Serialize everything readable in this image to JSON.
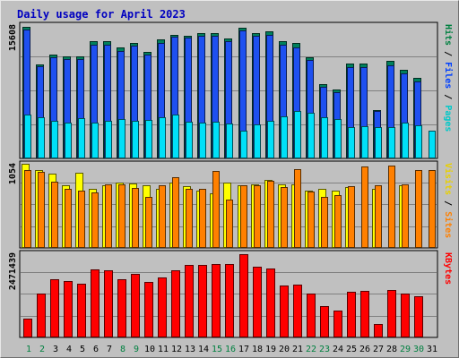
{
  "chart_data": {
    "type": "bar",
    "title": "Daily usage for April 2023",
    "categories": [
      "1",
      "2",
      "3",
      "4",
      "5",
      "6",
      "7",
      "8",
      "9",
      "10",
      "11",
      "12",
      "13",
      "14",
      "15",
      "16",
      "17",
      "18",
      "19",
      "20",
      "21",
      "22",
      "23",
      "24",
      "25",
      "26",
      "27",
      "28",
      "29",
      "30",
      "31"
    ],
    "weekend_days": [
      "1",
      "2",
      "8",
      "9",
      "15",
      "16",
      "22",
      "23",
      "29",
      "30"
    ],
    "panels": [
      {
        "id": "hits",
        "max_label": "15608",
        "ylim": [
          0,
          15608
        ],
        "label_parts": [
          {
            "text": "Pages",
            "color": "#00c8c8"
          },
          {
            "text": " / ",
            "color": "#000000"
          },
          {
            "text": "Files",
            "color": "#0040ff"
          },
          {
            "text": " / ",
            "color": "#000000"
          },
          {
            "text": "Hits",
            "color": "#008040"
          }
        ],
        "series": [
          {
            "name": "Hits",
            "color": "#00805c",
            "values": [
              15400,
              11000,
              12100,
              11900,
              11900,
              13700,
              13700,
              13000,
              13500,
              12500,
              13900,
              14500,
              14400,
              14700,
              14700,
              14000,
              15300,
              14700,
              14900,
              13700,
              13500,
              11800,
              8700,
              8100,
              11100,
              11100,
              5700,
              11400,
              10400,
              9400,
              null
            ]
          },
          {
            "name": "Files",
            "color": "#1e50f0",
            "values": [
              15100,
              10800,
              11800,
              11600,
              11600,
              13300,
              13300,
              12600,
              13200,
              12200,
              13500,
              14200,
              14100,
              14400,
              14400,
              13700,
              15000,
              14400,
              14500,
              13300,
              13000,
              11500,
              8400,
              7800,
              10700,
              10700,
              5500,
              10900,
              9900,
              9000,
              null
            ]
          },
          {
            "name": "Pages",
            "color": "#00e0f8",
            "values": [
              5100,
              4800,
              4400,
              4200,
              4700,
              4200,
              4400,
              4600,
              4400,
              4500,
              4800,
              5100,
              4300,
              4200,
              4300,
              4100,
              3200,
              4000,
              4400,
              4900,
              5600,
              5300,
              4800,
              4600,
              3700,
              3800,
              3700,
              3700,
              4200,
              3900,
              3200
            ]
          }
        ]
      },
      {
        "id": "visits",
        "max_label": "1054",
        "ylim": [
          0,
          1054
        ],
        "label_parts": [
          {
            "text": "Sites",
            "color": "#ff8000"
          },
          {
            "text": " / ",
            "color": "#000000"
          },
          {
            "text": "Visits",
            "color": "#e8d000"
          }
        ],
        "series": [
          {
            "name": "Visits",
            "color": "#ffff00",
            "values": [
              1054,
              980,
              930,
              780,
              940,
              740,
              790,
              820,
              810,
              790,
              740,
              820,
              770,
              720,
              680,
              820,
              780,
              800,
              850,
              800,
              800,
              720,
              740,
              720,
              760,
              null,
              740,
              null,
              780,
              null,
              null
            ]
          },
          {
            "name": "Sites",
            "color": "#ff8000",
            "values": [
              980,
              950,
              830,
              740,
              720,
              690,
              800,
              800,
              750,
              640,
              780,
              890,
              740,
              740,
              960,
              600,
              790,
              780,
              840,
              760,
              990,
              710,
              640,
              660,
              770,
              1020,
              780,
              1030,
              800,
              980,
              980
            ]
          }
        ]
      },
      {
        "id": "kbytes",
        "max_label": "2471439",
        "ylim": [
          0,
          2471439
        ],
        "label_parts": [
          {
            "text": "KBytes",
            "color": "#ff0000"
          }
        ],
        "series": [
          {
            "name": "KBytes",
            "color": "#ff0000",
            "values": [
              550000,
              1300000,
              1700000,
              1650000,
              1580000,
              1990000,
              1970000,
              1720000,
              1860000,
              1640000,
              1750000,
              1970000,
              2130000,
              2130000,
              2160000,
              2160000,
              2440000,
              2070000,
              2020000,
              1530000,
              1550000,
              1300000,
              920000,
              780000,
              1330000,
              1380000,
              400000,
              1390000,
              1300000,
              1210000,
              null
            ]
          }
        ]
      }
    ]
  }
}
